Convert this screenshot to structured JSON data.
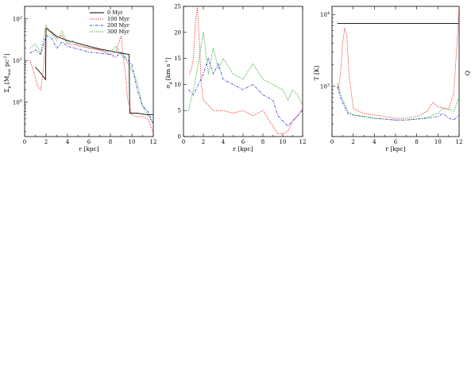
{
  "colors": {
    "0 Myr": "#000000",
    "100 Myr": "#e8201c",
    "200 Myr": "#3a3ae6",
    "300 Myr": "#20a020"
  },
  "chart_data": [
    {
      "type": "line",
      "xlabel": "r [kpc]",
      "ylabel_main": "Σ",
      "ylabel_sub": "g",
      "ylabel_unit": "[M",
      "ylabel_unit_sub": "sun",
      "ylabel_unit_end": " pc",
      "ylabel_unit_sup": "-2",
      "ylabel_close": "]",
      "yscale": "log",
      "xlim": [
        0,
        12
      ],
      "ylim": [
        0.15,
        200
      ],
      "xticks": [
        0,
        2,
        4,
        6,
        8,
        10,
        12
      ],
      "xtick_labels": [
        "0",
        "2",
        "4",
        "6",
        "8",
        "10",
        "12"
      ],
      "yticks_log": [
        {
          "base": "10",
          "exp": "0",
          "value": 1
        },
        {
          "base": "10",
          "exp": "1",
          "value": 10
        },
        {
          "base": "10",
          "exp": "2",
          "value": 100
        }
      ],
      "legend": {
        "placement": "top-right",
        "entries": [
          "0 Myr",
          "100 Myr",
          "200 Myr",
          "300 Myr"
        ]
      },
      "series": [
        {
          "name": "0 Myr",
          "style": "solid",
          "x": [
            1.0,
            1.5,
            1.95,
            2.0,
            2.5,
            3.0,
            4.0,
            5.0,
            6.0,
            7.0,
            8.0,
            9.0,
            9.75,
            9.8,
            10.5,
            11.0,
            11.5,
            12.0
          ],
          "y": [
            7,
            5,
            3.5,
            60,
            48,
            38,
            30,
            26,
            22,
            19,
            17,
            15,
            14,
            0.55,
            0.55,
            0.52,
            0.5,
            0.5
          ]
        },
        {
          "name": "100 Myr",
          "style": "dotted",
          "x": [
            0.5,
            0.9,
            1.2,
            1.5,
            1.8,
            2.0,
            2.5,
            3.0,
            3.5,
            4.0,
            5.0,
            6.0,
            7.0,
            8.0,
            8.5,
            9.0,
            9.2,
            9.4,
            9.6,
            10.0,
            10.5,
            11.0,
            11.5,
            12.0
          ],
          "y": [
            10,
            5,
            2.5,
            2,
            8,
            60,
            45,
            35,
            40,
            25,
            24,
            20,
            18,
            14,
            16,
            40,
            12,
            5,
            1.2,
            0.5,
            0.45,
            0.45,
            0.4,
            0.18
          ]
        },
        {
          "name": "200 Myr",
          "style": "dashdot",
          "x": [
            0.5,
            1.0,
            1.5,
            2.0,
            2.5,
            3.0,
            3.5,
            4.0,
            5.0,
            6.0,
            7.0,
            8.0,
            8.5,
            9.0,
            9.5,
            10.0,
            10.5,
            11.0,
            11.5,
            12.0
          ],
          "y": [
            15,
            18,
            14,
            40,
            35,
            20,
            28,
            22,
            19,
            16,
            15,
            14,
            12,
            16,
            11,
            8,
            2,
            0.8,
            0.6,
            0.3
          ]
        },
        {
          "name": "300 Myr",
          "style": "dotted",
          "x": [
            0.5,
            1.0,
            1.5,
            2.0,
            2.5,
            3.0,
            3.5,
            4.0,
            4.5,
            5.0,
            6.0,
            7.0,
            8.0,
            8.5,
            9.0,
            9.5,
            10.0,
            10.5,
            11.0,
            11.5,
            12.0
          ],
          "y": [
            20,
            25,
            15,
            70,
            45,
            30,
            50,
            25,
            30,
            22,
            20,
            18,
            16,
            22,
            14,
            10,
            6,
            3,
            0.8,
            0.5,
            0.3
          ]
        }
      ]
    },
    {
      "type": "line",
      "xlabel": "r [kpc]",
      "ylabel_main": "σ",
      "ylabel_sub": "g",
      "ylabel_unit": "[km s",
      "ylabel_unit_sup": "-1",
      "ylabel_close": "]",
      "yscale": "linear",
      "xlim": [
        0,
        12
      ],
      "ylim": [
        0,
        25
      ],
      "xticks": [
        0,
        2,
        4,
        6,
        8,
        10,
        12
      ],
      "xtick_labels": [
        "0",
        "2",
        "4",
        "6",
        "8",
        "10",
        "12"
      ],
      "yticks": [
        0,
        5,
        10,
        15,
        20,
        25
      ],
      "ytick_labels": [
        "0",
        "5",
        "10",
        "15",
        "20",
        "25"
      ],
      "series": [
        {
          "name": "100 Myr",
          "style": "dotted",
          "x": [
            0.6,
            0.8,
            1.0,
            1.2,
            1.4,
            1.6,
            1.8,
            2.0,
            2.5,
            3.0,
            4.0,
            5.0,
            6.0,
            7.0,
            8.0,
            8.5,
            9.0,
            9.5,
            10.0,
            10.5,
            11.0,
            11.5,
            12.0
          ],
          "y": [
            12,
            13,
            15,
            22,
            25,
            18,
            10,
            7,
            6,
            5,
            5,
            4.5,
            5,
            4,
            5,
            3.5,
            2,
            0.5,
            0.5,
            1,
            3,
            4,
            5.5
          ]
        },
        {
          "name": "200 Myr",
          "style": "dashdot",
          "x": [
            0.5,
            1.0,
            1.5,
            2.0,
            2.5,
            3.0,
            3.5,
            4.0,
            5.0,
            6.0,
            7.0,
            8.0,
            9.0,
            9.5,
            10.0,
            10.5,
            11.0,
            11.5,
            12.0
          ],
          "y": [
            9,
            8,
            10,
            12,
            15,
            12,
            14,
            11,
            10,
            9,
            10,
            8,
            7,
            4,
            3,
            2,
            3,
            4,
            5
          ]
        },
        {
          "name": "300 Myr",
          "style": "dotted",
          "x": [
            0.5,
            1.0,
            1.5,
            2.0,
            2.5,
            3.0,
            3.5,
            4.0,
            5.0,
            6.0,
            7.0,
            8.0,
            9.0,
            10.0,
            10.5,
            11.0,
            11.5,
            12.0
          ],
          "y": [
            5,
            9,
            14,
            20,
            12,
            17,
            13,
            15,
            12,
            11,
            14,
            11,
            10,
            9,
            7,
            9,
            8,
            6
          ]
        }
      ]
    },
    {
      "type": "line",
      "xlabel": "r [kpc]",
      "ylabel": "T [K]",
      "ylabel_right": "Q",
      "yscale": "log",
      "xlim": [
        0,
        12
      ],
      "ylim": [
        200,
        13000
      ],
      "xticks": [
        0,
        2,
        4,
        6,
        8,
        10,
        12
      ],
      "xtick_labels": [
        "0",
        "2",
        "4",
        "6",
        "8",
        "10",
        "12"
      ],
      "yticks_log": [
        {
          "base": "10",
          "exp": "3",
          "value": 1000
        },
        {
          "base": "10",
          "exp": "4",
          "value": 10000
        }
      ],
      "series": [
        {
          "name": "0 Myr",
          "style": "solid",
          "x": [
            0.5,
            12.0
          ],
          "y": [
            7500,
            7500
          ]
        },
        {
          "name": "100 Myr",
          "style": "dotted",
          "x": [
            0.6,
            0.8,
            1.0,
            1.2,
            1.4,
            1.6,
            2.0,
            2.5,
            3.0,
            4.0,
            5.0,
            6.0,
            7.0,
            8.0,
            9.0,
            9.5,
            10.0,
            10.5,
            11.0,
            11.5,
            11.8,
            12.0
          ],
          "y": [
            900,
            1500,
            4000,
            6500,
            5000,
            1500,
            500,
            450,
            420,
            400,
            380,
            360,
            360,
            380,
            450,
            600,
            520,
            500,
            480,
            800,
            4000,
            15000
          ]
        },
        {
          "name": "200 Myr",
          "style": "dashdot",
          "x": [
            0.5,
            0.8,
            1.0,
            1.5,
            2.0,
            3.0,
            4.0,
            5.0,
            6.0,
            7.0,
            8.0,
            9.0,
            10.0,
            10.5,
            11.0,
            11.5,
            12.0
          ],
          "y": [
            1000,
            700,
            600,
            420,
            400,
            380,
            360,
            350,
            340,
            340,
            350,
            360,
            380,
            420,
            360,
            340,
            400
          ]
        },
        {
          "name": "300 Myr",
          "style": "dotted",
          "x": [
            0.5,
            0.8,
            1.0,
            1.5,
            2.0,
            3.0,
            4.0,
            5.0,
            6.0,
            7.0,
            8.0,
            9.0,
            10.0,
            10.5,
            11.0,
            11.5,
            12.0
          ],
          "y": [
            1100,
            800,
            650,
            450,
            400,
            380,
            360,
            350,
            340,
            340,
            350,
            370,
            420,
            500,
            480,
            450,
            700
          ]
        }
      ]
    }
  ]
}
